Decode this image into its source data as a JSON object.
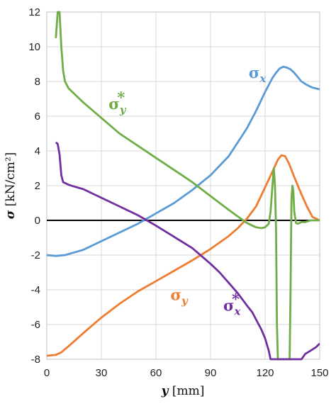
{
  "chart_data": {
    "type": "line",
    "title": "",
    "xlabel": {
      "symbol": "y",
      "unit": "[mm]"
    },
    "ylabel": {
      "symbol": "σ",
      "unit": "[kN/cm²]"
    },
    "xlim": [
      0,
      150
    ],
    "ylim": [
      -8,
      12
    ],
    "x_ticks": [
      0,
      30,
      60,
      90,
      120,
      150
    ],
    "y_ticks": [
      -8,
      -6,
      -4,
      -2,
      0,
      2,
      4,
      6,
      8,
      10,
      12
    ],
    "grid": true,
    "legend": "none",
    "series": [
      {
        "name": "σx",
        "label": {
          "base": "σ",
          "sub": "x",
          "sup": ""
        },
        "color": "#5b9bd5",
        "x": [
          0,
          5,
          10,
          15,
          20,
          30,
          40,
          50,
          60,
          70,
          80,
          90,
          100,
          105,
          110,
          115,
          120,
          124,
          126,
          128,
          130,
          132,
          134,
          136,
          138,
          140,
          143,
          146,
          150
        ],
        "y": [
          -2.0,
          -2.05,
          -2.0,
          -1.85,
          -1.7,
          -1.2,
          -0.7,
          -0.2,
          0.4,
          1.0,
          1.75,
          2.6,
          3.7,
          4.5,
          5.3,
          6.3,
          7.4,
          8.2,
          8.5,
          8.75,
          8.85,
          8.8,
          8.7,
          8.5,
          8.25,
          8.0,
          7.8,
          7.65,
          7.55
        ]
      },
      {
        "name": "σy",
        "label": {
          "base": "σ",
          "sub": "y",
          "sup": ""
        },
        "color": "#ed7d31",
        "x": [
          0,
          5,
          8,
          12,
          20,
          30,
          40,
          50,
          60,
          70,
          80,
          90,
          100,
          105,
          110,
          115,
          120,
          124,
          127,
          129,
          131,
          133,
          136,
          140,
          143,
          146,
          150
        ],
        "y": [
          -7.8,
          -7.75,
          -7.6,
          -7.25,
          -6.5,
          -5.6,
          -4.8,
          -4.1,
          -3.5,
          -2.9,
          -2.3,
          -1.65,
          -0.9,
          -0.45,
          0.1,
          0.8,
          1.9,
          2.8,
          3.5,
          3.75,
          3.7,
          3.3,
          2.5,
          1.5,
          0.8,
          0.2,
          0.0
        ]
      },
      {
        "name": "σy*",
        "label": {
          "base": "σ",
          "sub": "y",
          "sup": "*"
        },
        "color": "#70ad47",
        "x": [
          5,
          6,
          7,
          8,
          9,
          10,
          12,
          15,
          20,
          30,
          40,
          50,
          60,
          70,
          80,
          90,
          100,
          110,
          115,
          118,
          120,
          122,
          123,
          124,
          124.8,
          125.4,
          126,
          126.5,
          127,
          127.5,
          128,
          130,
          132,
          133,
          133.5,
          134,
          134.5,
          135,
          135.5,
          136,
          137,
          138,
          140,
          142,
          145,
          150
        ],
        "y": [
          10.5,
          12.0,
          12.0,
          10.0,
          8.6,
          8.0,
          7.6,
          7.3,
          6.8,
          5.9,
          5.0,
          4.3,
          3.6,
          2.9,
          2.2,
          1.4,
          0.6,
          -0.15,
          -0.4,
          -0.45,
          -0.4,
          -0.2,
          0.5,
          2.0,
          3.0,
          2.0,
          -0.5,
          -6.0,
          -8.0,
          -8.0,
          -8.0,
          -8.0,
          -8.0,
          -8.0,
          -8.0,
          -4.0,
          1.2,
          2.0,
          1.7,
          0.5,
          -0.15,
          -0.2,
          -0.1,
          -0.1,
          0.0,
          0.0
        ]
      },
      {
        "name": "σx*",
        "label": {
          "base": "σ",
          "sub": "x",
          "sup": "*"
        },
        "color": "#7030a0",
        "x": [
          5,
          6,
          7,
          8,
          9,
          10,
          12,
          15,
          20,
          30,
          40,
          50,
          55,
          60,
          70,
          80,
          90,
          95,
          100,
          105,
          110,
          113,
          116,
          118,
          120,
          122,
          123,
          140,
          142,
          145,
          148,
          150
        ],
        "y": [
          4.5,
          4.4,
          3.8,
          2.6,
          2.2,
          2.15,
          2.05,
          1.95,
          1.8,
          1.3,
          0.8,
          0.3,
          0.0,
          -0.3,
          -0.95,
          -1.6,
          -2.5,
          -3.0,
          -3.6,
          -4.2,
          -4.9,
          -5.3,
          -5.9,
          -6.3,
          -6.8,
          -7.5,
          -8.0,
          -8.0,
          -7.7,
          -7.5,
          -7.3,
          -7.1
        ]
      }
    ],
    "annotations": [
      {
        "series": "σy*",
        "at": [
          34,
          6.4
        ]
      },
      {
        "series": "σx",
        "at": [
          111,
          8.2
        ]
      },
      {
        "series": "σy",
        "at": [
          68,
          -4.6
        ]
      },
      {
        "series": "σx*",
        "at": [
          97,
          -5.2
        ]
      }
    ]
  }
}
